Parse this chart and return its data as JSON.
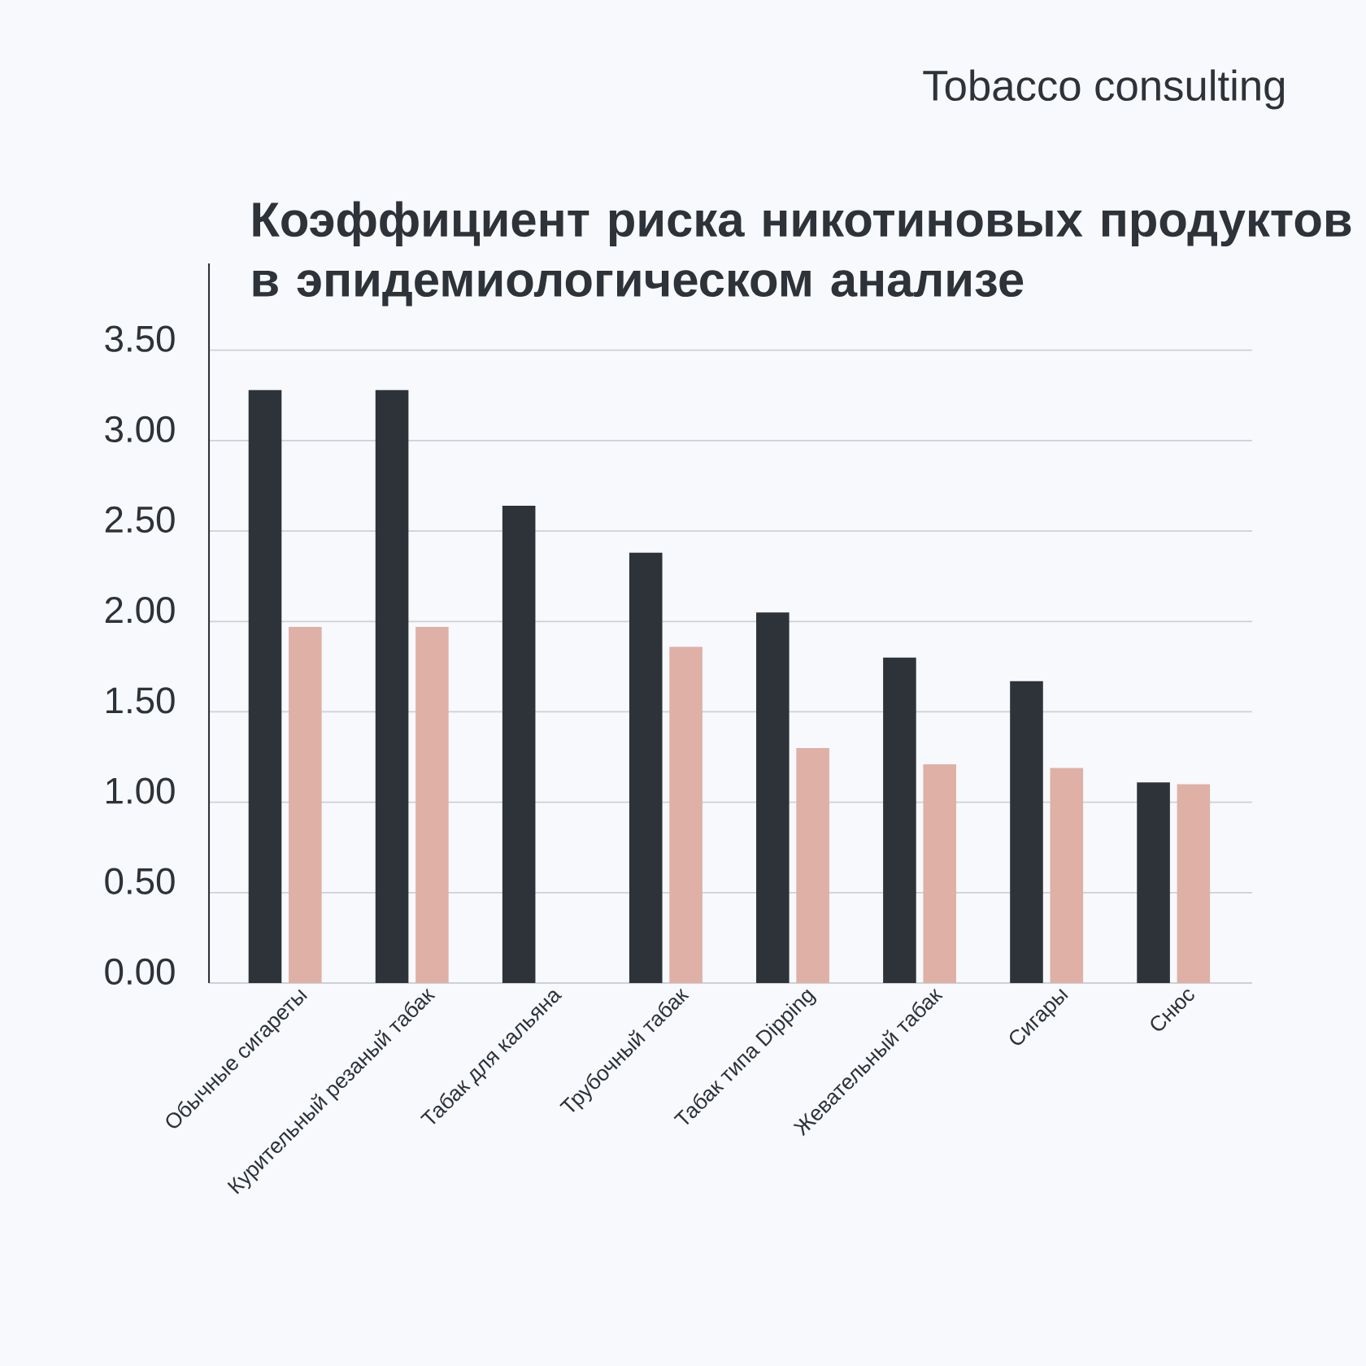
{
  "chart_data": {
    "type": "bar",
    "title": "Коэффициент риска никотиновых продуктов в эпидемиологическом анализе",
    "subtitle": "Tobacco consulting",
    "categories": [
      "Обычные сигареты",
      "Курительный резаный табак",
      "Табак для кальяна",
      "Трубочный табак",
      "Табак типа Dipping",
      "Жевательный табак",
      "Сигары",
      "Снюс"
    ],
    "series": [
      {
        "color": "#2e3239",
        "values": [
          3.28,
          3.28,
          2.64,
          2.38,
          2.05,
          1.8,
          1.67,
          1.11
        ]
      },
      {
        "color": "#dfb0a6",
        "values": [
          1.97,
          1.97,
          null,
          1.86,
          1.3,
          1.21,
          1.19,
          1.1
        ]
      }
    ],
    "ylim": [
      0,
      3.98
    ],
    "yticks": [
      {
        "value": 0,
        "label": "0.00"
      },
      {
        "value": 0.5,
        "label": "0.50"
      },
      {
        "value": 1,
        "label": "1.00"
      },
      {
        "value": 1.5,
        "label": "1.50"
      },
      {
        "value": 2,
        "label": "2.00"
      },
      {
        "value": 2.5,
        "label": "2.50"
      },
      {
        "value": 3,
        "label": "3.00"
      },
      {
        "value": 3.5,
        "label": "3.50"
      }
    ],
    "grid": "y"
  }
}
